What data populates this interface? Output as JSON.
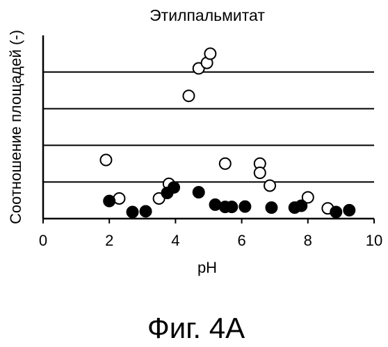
{
  "chart_data": {
    "type": "scatter",
    "title": "Этилпальмитат",
    "xlabel": "pH",
    "ylabel": "Соотношение площадей (-)",
    "xlim": [
      0,
      10
    ],
    "ylim": [
      0,
      5
    ],
    "x_ticks": [
      "0",
      "2",
      "4",
      "6",
      "8",
      "10"
    ],
    "y_gridlines": [
      1,
      2,
      3,
      4
    ],
    "grid": "horizontal",
    "colors": {
      "open_fill": "#ffffff",
      "filled_fill": "#000000",
      "stroke": "#000000"
    },
    "series": [
      {
        "marker": "open-circle",
        "points": [
          [
            1.9,
            1.6
          ],
          [
            2.3,
            0.55
          ],
          [
            3.5,
            0.55
          ],
          [
            3.8,
            0.95
          ],
          [
            4.4,
            3.35
          ],
          [
            4.7,
            4.1
          ],
          [
            4.95,
            4.25
          ],
          [
            5.05,
            4.5
          ],
          [
            5.5,
            1.5
          ],
          [
            6.55,
            1.5
          ],
          [
            6.55,
            1.25
          ],
          [
            6.85,
            0.9
          ],
          [
            8.0,
            0.58
          ],
          [
            8.6,
            0.28
          ]
        ]
      },
      {
        "marker": "filled-circle",
        "points": [
          [
            2.0,
            0.48
          ],
          [
            2.7,
            0.18
          ],
          [
            3.1,
            0.2
          ],
          [
            3.75,
            0.7
          ],
          [
            3.95,
            0.85
          ],
          [
            4.7,
            0.72
          ],
          [
            5.2,
            0.38
          ],
          [
            5.5,
            0.32
          ],
          [
            5.7,
            0.32
          ],
          [
            6.1,
            0.33
          ],
          [
            6.9,
            0.3
          ],
          [
            7.6,
            0.3
          ],
          [
            7.8,
            0.35
          ],
          [
            8.85,
            0.18
          ],
          [
            9.25,
            0.23
          ]
        ]
      }
    ]
  },
  "caption": "Фиг. 4A"
}
